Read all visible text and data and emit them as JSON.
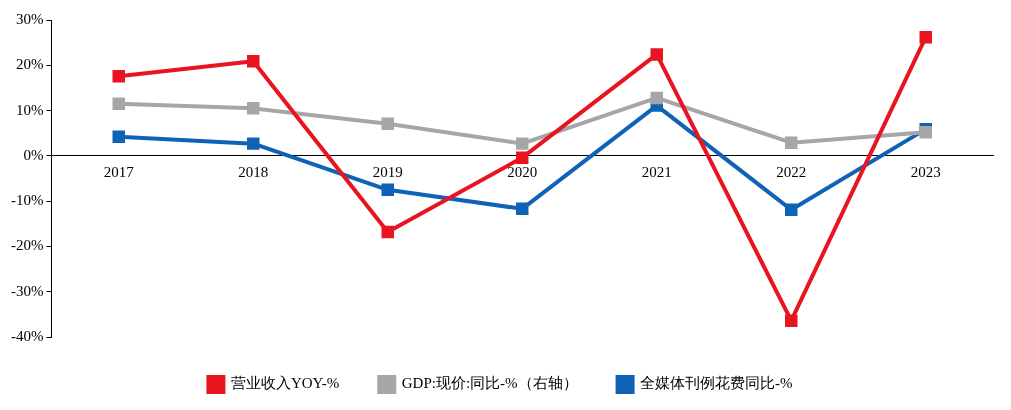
{
  "chart_data": {
    "type": "line",
    "categories": [
      "2017",
      "2018",
      "2019",
      "2020",
      "2021",
      "2022",
      "2023"
    ],
    "series": [
      {
        "name": "营业收入YOY-%",
        "color": "#e8141f",
        "values": [
          17.6,
          20.9,
          -16.8,
          -0.4,
          22.4,
          -36.4,
          26.2
        ]
      },
      {
        "name": "全媒体刊例花费同比-%",
        "color": "#0f62b5",
        "values": [
          4.2,
          2.7,
          -7.5,
          -11.7,
          11.1,
          -11.9,
          5.9
        ]
      },
      {
        "name": "GDP:现价:同比-%（右轴）",
        "color": "#a6a6a6",
        "values": [
          11.5,
          10.5,
          7.1,
          2.7,
          12.8,
          2.9,
          5.2
        ]
      }
    ],
    "ylim": [
      -40,
      30
    ],
    "yticks": [
      {
        "value": -40,
        "label": "-40%"
      },
      {
        "value": -30,
        "label": "-30%"
      },
      {
        "value": -20,
        "label": "-20%"
      },
      {
        "value": -10,
        "label": "-10%"
      },
      {
        "value": 0,
        "label": "0%"
      },
      {
        "value": 10,
        "label": "10%"
      },
      {
        "value": 20,
        "label": "20%"
      },
      {
        "value": 30,
        "label": "30%"
      }
    ],
    "grid": false,
    "legend": "bottom",
    "marker": "square",
    "line_style": "solid"
  }
}
